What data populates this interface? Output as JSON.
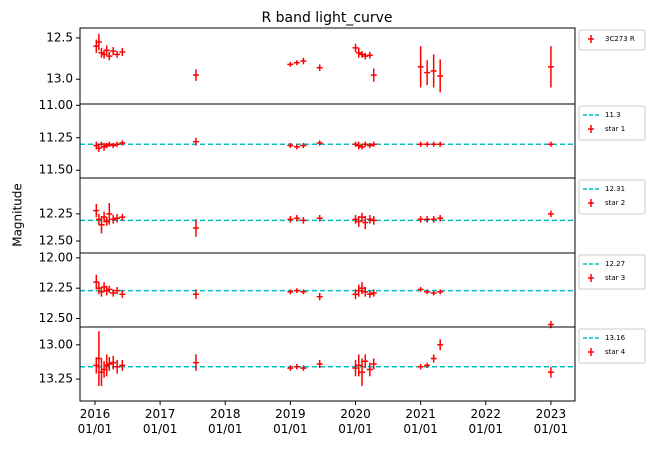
{
  "chart_data": {
    "type": "errorbar",
    "title": "R band light_curve",
    "y_label": "Magnitude",
    "xlim": [
      2015.77,
      2023.37
    ],
    "xticks": [
      {
        "value": 2016,
        "label": "2016\n01/01"
      },
      {
        "value": 2017,
        "label": "2017\n01/01"
      },
      {
        "value": 2018,
        "label": "2018\n01/01"
      },
      {
        "value": 2019,
        "label": "2019\n01/01"
      },
      {
        "value": 2020,
        "label": "2020\n01/01"
      },
      {
        "value": 2021,
        "label": "2021\n01/01"
      },
      {
        "value": 2022,
        "label": "2022\n01/01"
      },
      {
        "value": 2023,
        "label": "2023\n01/01"
      }
    ],
    "y_inverted": true,
    "panels": [
      {
        "ylim": [
          12.38,
          13.3
        ],
        "yticks": [
          12.5,
          {
            "value": 13,
            "label": "13.0"
          }
        ],
        "series": {
          "name": "3C273 R",
          "color": "#ff0000",
          "x": [
            2016.02,
            2016.06,
            2016.1,
            2016.14,
            2016.18,
            2016.22,
            2016.28,
            2016.34,
            2016.42,
            2017.55,
            2019.0,
            2019.1,
            2019.2,
            2019.45,
            2020.0,
            2020.05,
            2020.1,
            2020.15,
            2020.22,
            2020.28,
            2021.0,
            2021.1,
            2021.2,
            2021.3,
            2023.0
          ],
          "values": [
            12.6,
            12.55,
            12.68,
            12.7,
            12.65,
            12.72,
            12.66,
            12.7,
            12.67,
            12.95,
            12.82,
            12.8,
            12.78,
            12.86,
            12.62,
            12.68,
            12.7,
            12.72,
            12.71,
            12.95,
            12.85,
            12.92,
            12.9,
            12.96,
            12.85
          ],
          "errors": [
            0.08,
            0.1,
            0.06,
            0.05,
            0.06,
            0.05,
            0.05,
            0.04,
            0.05,
            0.07,
            0.03,
            0.03,
            0.04,
            0.04,
            0.05,
            0.06,
            0.04,
            0.04,
            0.04,
            0.08,
            0.25,
            0.15,
            0.2,
            0.2,
            0.25
          ]
        }
      },
      {
        "ylim": [
          10.99,
          11.56
        ],
        "yticks": [
          {
            "value": 11,
            "label": "11.00"
          },
          11.25,
          {
            "value": 11.5,
            "label": "11.50"
          }
        ],
        "hline": {
          "value": 11.3,
          "color": "#00bfbf"
        },
        "series": {
          "name": "star 1",
          "color": "#ff0000",
          "x": [
            2016.02,
            2016.06,
            2016.1,
            2016.14,
            2016.18,
            2016.22,
            2016.28,
            2016.34,
            2016.42,
            2017.55,
            2019.0,
            2019.1,
            2019.2,
            2019.45,
            2020.0,
            2020.05,
            2020.1,
            2020.15,
            2020.22,
            2020.28,
            2021.0,
            2021.1,
            2021.2,
            2021.3,
            2023.0
          ],
          "values": [
            11.31,
            11.33,
            11.3,
            11.32,
            11.31,
            11.3,
            11.31,
            11.3,
            11.29,
            11.28,
            11.31,
            11.32,
            11.31,
            11.29,
            11.3,
            11.31,
            11.32,
            11.3,
            11.31,
            11.3,
            11.3,
            11.3,
            11.3,
            11.3,
            11.3
          ],
          "errors": [
            0.03,
            0.03,
            0.02,
            0.03,
            0.02,
            0.02,
            0.02,
            0.02,
            0.02,
            0.03,
            0.02,
            0.02,
            0.02,
            0.02,
            0.02,
            0.03,
            0.02,
            0.02,
            0.02,
            0.02,
            0.02,
            0.02,
            0.02,
            0.02,
            0.02
          ]
        }
      },
      {
        "ylim": [
          11.92,
          12.61
        ],
        "yticks": [
          12.25,
          {
            "value": 12.5,
            "label": "12.50"
          }
        ],
        "hline": {
          "value": 12.31,
          "color": "#00bfbf"
        },
        "series": {
          "name": "star 2",
          "color": "#ff0000",
          "x": [
            2016.02,
            2016.06,
            2016.1,
            2016.14,
            2016.18,
            2016.22,
            2016.28,
            2016.34,
            2016.42,
            2017.55,
            2019.0,
            2019.1,
            2019.2,
            2019.45,
            2020.0,
            2020.05,
            2020.1,
            2020.15,
            2020.22,
            2020.28,
            2021.0,
            2021.1,
            2021.2,
            2021.3,
            2023.0
          ],
          "values": [
            12.22,
            12.3,
            12.35,
            12.28,
            12.32,
            12.25,
            12.3,
            12.29,
            12.28,
            12.38,
            12.3,
            12.29,
            12.31,
            12.29,
            12.3,
            12.32,
            12.28,
            12.33,
            12.3,
            12.31,
            12.3,
            12.3,
            12.3,
            12.29,
            12.25
          ],
          "errors": [
            0.06,
            0.05,
            0.08,
            0.05,
            0.04,
            0.1,
            0.04,
            0.04,
            0.03,
            0.08,
            0.03,
            0.03,
            0.03,
            0.03,
            0.04,
            0.05,
            0.04,
            0.06,
            0.04,
            0.04,
            0.03,
            0.03,
            0.03,
            0.03,
            0.03
          ]
        }
      },
      {
        "ylim": [
          11.96,
          12.57
        ],
        "yticks": [
          {
            "value": 12,
            "label": "12.00"
          },
          12.25,
          {
            "value": 12.5,
            "label": "12.50"
          }
        ],
        "hline": {
          "value": 12.27,
          "color": "#00bfbf"
        },
        "series": {
          "name": "star 3",
          "color": "#ff0000",
          "x": [
            2016.02,
            2016.06,
            2016.1,
            2016.14,
            2016.18,
            2016.22,
            2016.28,
            2016.34,
            2016.42,
            2017.55,
            2019.0,
            2019.1,
            2019.2,
            2019.45,
            2020.0,
            2020.05,
            2020.1,
            2020.15,
            2020.22,
            2020.28,
            2021.0,
            2021.1,
            2021.2,
            2021.3,
            2023.0
          ],
          "values": [
            12.2,
            12.25,
            12.28,
            12.24,
            12.27,
            12.26,
            12.29,
            12.27,
            12.3,
            12.3,
            12.28,
            12.27,
            12.28,
            12.32,
            12.3,
            12.27,
            12.25,
            12.28,
            12.3,
            12.29,
            12.26,
            12.28,
            12.29,
            12.28,
            12.55
          ],
          "errors": [
            0.06,
            0.05,
            0.04,
            0.04,
            0.04,
            0.03,
            0.03,
            0.03,
            0.03,
            0.04,
            0.02,
            0.02,
            0.02,
            0.03,
            0.04,
            0.05,
            0.05,
            0.04,
            0.03,
            0.03,
            0.02,
            0.02,
            0.02,
            0.02,
            0.03
          ]
        }
      },
      {
        "ylim": [
          12.87,
          13.41
        ],
        "yticks": [
          {
            "value": 13,
            "label": "13.00"
          },
          13.25
        ],
        "hline": {
          "value": 13.16,
          "color": "#00bfbf"
        },
        "series": {
          "name": "star 4",
          "color": "#ff0000",
          "x": [
            2016.02,
            2016.06,
            2016.1,
            2016.14,
            2016.18,
            2016.22,
            2016.28,
            2016.34,
            2016.42,
            2017.55,
            2019.0,
            2019.1,
            2019.2,
            2019.45,
            2020.0,
            2020.05,
            2020.1,
            2020.15,
            2020.22,
            2020.28,
            2021.0,
            2021.1,
            2021.2,
            2021.3,
            2023.0
          ],
          "values": [
            13.15,
            13.1,
            13.2,
            13.18,
            13.15,
            13.14,
            13.13,
            13.16,
            13.15,
            13.13,
            13.17,
            13.16,
            13.17,
            13.14,
            13.17,
            13.15,
            13.2,
            13.12,
            13.18,
            13.14,
            13.16,
            13.15,
            13.1,
            13.0,
            13.2
          ],
          "errors": [
            0.06,
            0.2,
            0.1,
            0.06,
            0.08,
            0.05,
            0.05,
            0.05,
            0.04,
            0.06,
            0.02,
            0.02,
            0.02,
            0.03,
            0.06,
            0.08,
            0.1,
            0.05,
            0.05,
            0.04,
            0.02,
            0.02,
            0.03,
            0.04,
            0.04
          ]
        }
      }
    ]
  }
}
